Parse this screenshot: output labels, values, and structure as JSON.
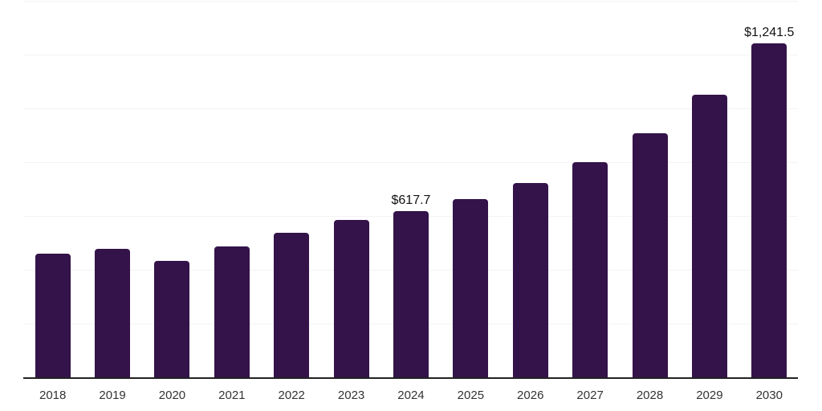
{
  "chart_data": {
    "type": "bar",
    "title": "",
    "xlabel": "",
    "ylabel": "",
    "categories": [
      "2018",
      "2019",
      "2020",
      "2021",
      "2022",
      "2023",
      "2024",
      "2025",
      "2026",
      "2027",
      "2028",
      "2029",
      "2030"
    ],
    "values": [
      459.8,
      478.1,
      433.0,
      486.6,
      537.4,
      585.2,
      617.7,
      662.5,
      721.5,
      800.4,
      906.8,
      1051.6,
      1241.5
    ],
    "point_labels": [
      "",
      "",
      "",
      "",
      "",
      "",
      "$617.7",
      "",
      "",
      "",
      "",
      "",
      "$1,241.5"
    ],
    "ylim": [
      0,
      1400
    ],
    "gridline_step": 200,
    "grid": true,
    "legend": false,
    "y_axis_tick_labels_visible": false,
    "colors": {
      "bar": "#331349",
      "gridline": "#f3f3f4",
      "axis_line": "#222222",
      "tick_label": "#333333",
      "data_label": "#111111",
      "background": "#ffffff"
    }
  }
}
